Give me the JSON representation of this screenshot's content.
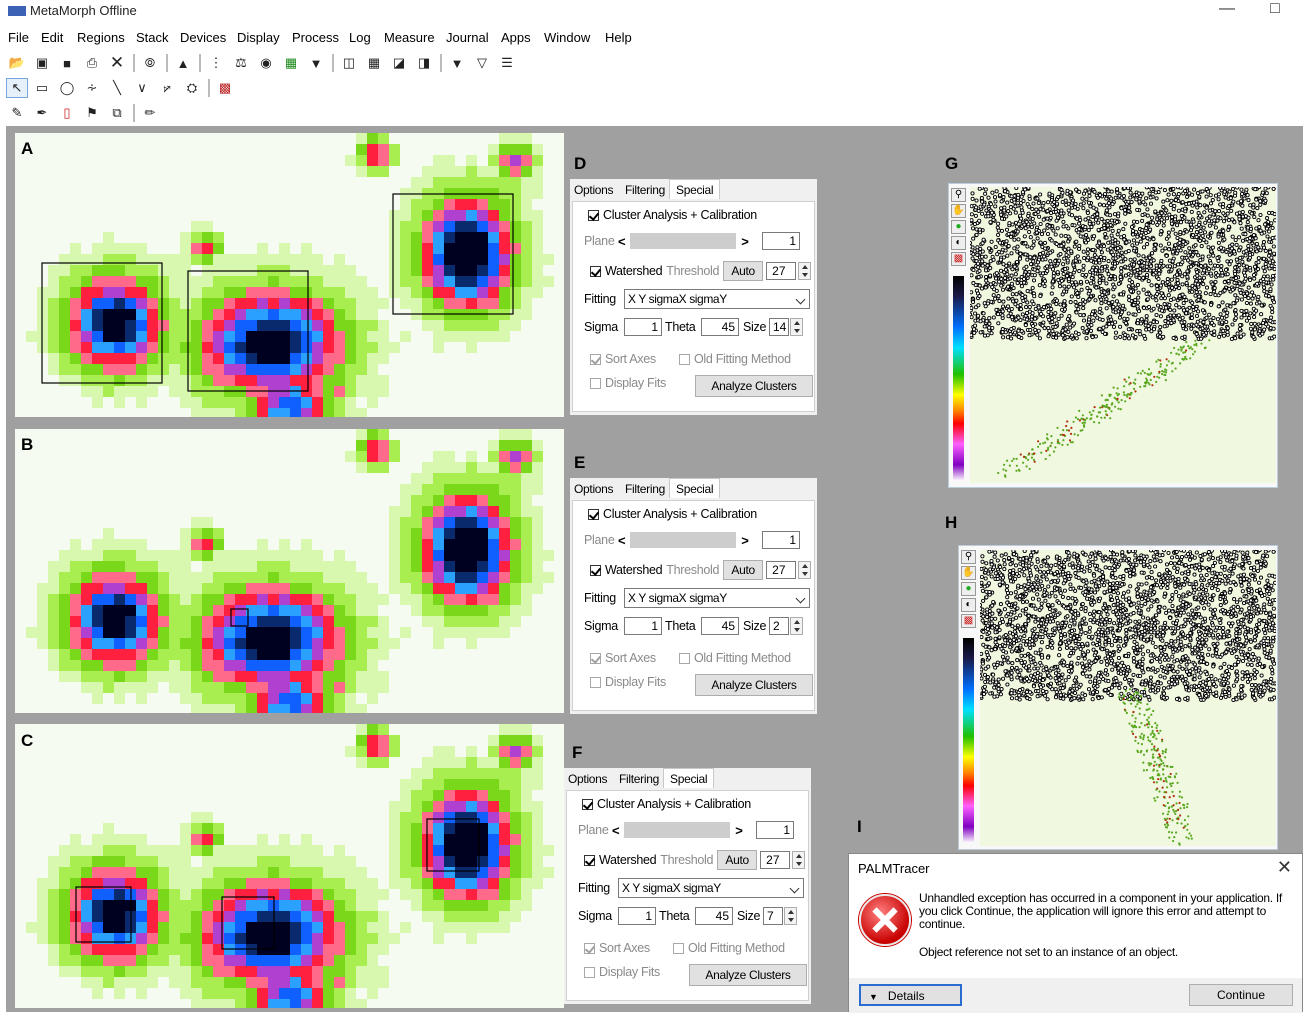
{
  "window": {
    "title": "MetaMorph Offline",
    "minimize": "—",
    "maximize": "□"
  },
  "menu": [
    "File",
    "Edit",
    "Regions",
    "Stack",
    "Devices",
    "Display",
    "Process",
    "Log",
    "Measure",
    "Journal",
    "Apps",
    "Window",
    "Help"
  ],
  "toolbar_icons": {
    "row1": [
      "open-icon",
      "save-icon",
      "save-as-icon",
      "print-icon",
      "close-icon",
      "compass-icon",
      "stamp-icon",
      "stack-icon",
      "balance-icon",
      "binoculars-icon",
      "filmstrip-icon",
      "acquire-icon",
      "gallery-icon",
      "montage-icon",
      "layers-icon",
      "duplicate-icon",
      "funnel-icon",
      "filter-icon",
      "filter-list-icon"
    ],
    "row2": [
      "pointer-icon",
      "rectangle-region-icon",
      "ellipse-region-icon",
      "freehand-region-icon",
      "line-icon",
      "polyline-icon",
      "arc-icon",
      "magic-wand-icon",
      "region-tool-icon"
    ],
    "row3": [
      "pencil-icon",
      "pen-icon",
      "eraser-icon",
      "stamp-tool-icon",
      "copy-tool-icon",
      "marker-icon"
    ]
  },
  "panels": {
    "A": {
      "letter": "A"
    },
    "B": {
      "letter": "B"
    },
    "C": {
      "letter": "C"
    },
    "D": {
      "letter": "D"
    },
    "E": {
      "letter": "E"
    },
    "F": {
      "letter": "F"
    },
    "G": {
      "letter": "G"
    },
    "H": {
      "letter": "H"
    },
    "I": {
      "letter": "I"
    }
  },
  "dialog_labels": {
    "tab_options": "Options",
    "tab_filtering": "Filtering",
    "tab_special": "Special",
    "cluster": "Cluster Analysis + Calibration",
    "plane": "Plane",
    "plane_prev": "<",
    "plane_next": ">",
    "watershed": "Watershed",
    "threshold": "Threshold",
    "auto": "Auto",
    "fitting": "Fitting",
    "sigma": "Sigma",
    "theta": "Theta",
    "size": "Size",
    "sort_axes": "Sort Axes",
    "old_fitting": "Old Fitting Method",
    "display_fits": "Display Fits",
    "analyze": "Analyze Clusters"
  },
  "dialogs": [
    {
      "id": "D",
      "plane": "1",
      "threshold": "27",
      "fitting": "X Y sigmaX sigmaY",
      "sigma": "1",
      "theta": "45",
      "size": "14"
    },
    {
      "id": "E",
      "plane": "1",
      "threshold": "27",
      "fitting": "X Y sigmaX sigmaY",
      "sigma": "1",
      "theta": "45",
      "size": "2"
    },
    {
      "id": "F",
      "plane": "1",
      "threshold": "27",
      "fitting": "X Y sigmaX sigmaY",
      "sigma": "1",
      "theta": "45",
      "size": "7"
    }
  ],
  "error_dialog": {
    "title": "PALMTracer",
    "close": "✕",
    "message": "Unhandled exception has occurred in a component in your application. If you click Continue, the application will ignore this error and attempt to continue.",
    "detail": "Object reference not set to an instance of an object.",
    "details_button": "Details",
    "continue_button": "Continue"
  },
  "colors": {
    "workspace": "#a0a0a0",
    "error_red": "#c80000",
    "dialog_bg": "#f0f0f0"
  }
}
